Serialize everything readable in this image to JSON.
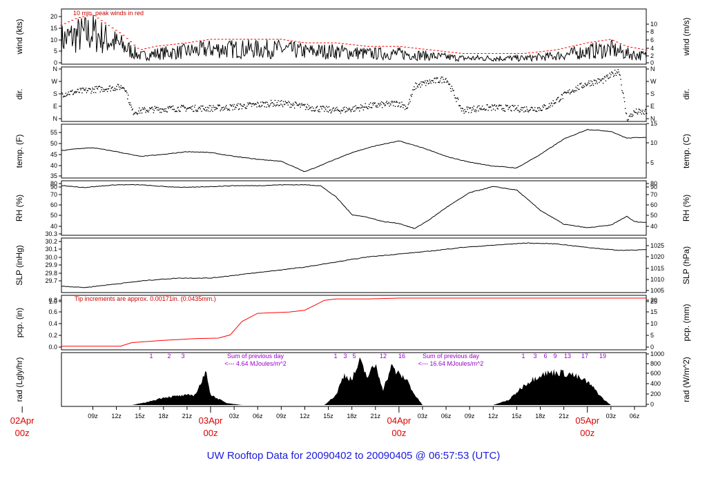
{
  "title": "UW Rooftop Data for 20090402  to  20090405 @ 06:57:53  (UTC)",
  "colors": {
    "title": "#1a1adb",
    "day_labels": "#dd0000",
    "note_red": "#cc0000",
    "note_purple": "#9900cc",
    "trace": "#000000",
    "pcp": "#ff0000",
    "peak": "#ff0000"
  },
  "chart_data": {
    "type": "line",
    "x_range_hours": [
      5,
      79.5
    ],
    "x_hour_ticks": [
      {
        "h": 9,
        "label": "09z"
      },
      {
        "h": 12,
        "label": "12z"
      },
      {
        "h": 15,
        "label": "15z"
      },
      {
        "h": 18,
        "label": "18z"
      },
      {
        "h": 21,
        "label": "21z"
      },
      {
        "h": 27,
        "label": "03z"
      },
      {
        "h": 30,
        "label": "06z"
      },
      {
        "h": 33,
        "label": "09z"
      },
      {
        "h": 36,
        "label": "12z"
      },
      {
        "h": 39,
        "label": "15z"
      },
      {
        "h": 42,
        "label": "18z"
      },
      {
        "h": 45,
        "label": "21z"
      },
      {
        "h": 51,
        "label": "03z"
      },
      {
        "h": 54,
        "label": "06z"
      },
      {
        "h": 57,
        "label": "09z"
      },
      {
        "h": 60,
        "label": "12z"
      },
      {
        "h": 63,
        "label": "15z"
      },
      {
        "h": 66,
        "label": "18z"
      },
      {
        "h": 69,
        "label": "21z"
      },
      {
        "h": 75,
        "label": "03z"
      },
      {
        "h": 78,
        "label": "06z"
      }
    ],
    "day_labels": [
      {
        "h": 0,
        "date": "02Apr",
        "hour": "00z"
      },
      {
        "h": 24,
        "date": "03Apr",
        "hour": "00z"
      },
      {
        "h": 48,
        "date": "04Apr",
        "hour": "00z"
      },
      {
        "h": 72,
        "date": "05Apr",
        "hour": "00z"
      }
    ],
    "panels": [
      {
        "id": "wind",
        "left_label": "wind (kts)",
        "right_label": "wind (m/s)",
        "ylim": [
          0,
          23
        ],
        "left_ticks": [
          "0",
          "5",
          "10",
          "15",
          "20"
        ],
        "right_ticks": [
          "0",
          "2",
          "4",
          "6",
          "8",
          "10"
        ],
        "annotation": "10 min. peak winds in red",
        "series": [
          {
            "style": "wind",
            "x": [
              5,
              7,
              9,
              11,
              13,
              15,
              17,
              21,
              24,
              27,
              30,
              33,
              36,
              40,
              44,
              48,
              52,
              56,
              60,
              64,
              68,
              70,
              72,
              75,
              77,
              79.5
            ],
            "y": [
              10,
              12,
              13,
              10,
              7,
              3,
              4,
              5,
              6,
              6,
              6,
              6,
              5,
              5,
              4,
              4,
              3,
              2,
              2,
              2,
              3,
              4,
              5,
              6,
              4,
              3
            ]
          }
        ]
      },
      {
        "id": "dir",
        "left_label": "dir.",
        "right_label": "dir.",
        "ylim": [
          0,
          360
        ],
        "left_ticks": [
          "N",
          "E",
          "S",
          "W",
          "N"
        ],
        "right_ticks": [
          "N",
          "E",
          "S",
          "W",
          "N"
        ],
        "series": [
          {
            "style": "scatter",
            "x": [
              5,
              7,
              9,
              11,
              13,
              14,
              16,
              18,
              20,
              22,
              24,
              26,
              28,
              30,
              32,
              34,
              36,
              38,
              40,
              42,
              44,
              46,
              48,
              49,
              50,
              52,
              54,
              56,
              58,
              60,
              62,
              64,
              66,
              67,
              68,
              70,
              72,
              74,
              76,
              77,
              78,
              79.5
            ],
            "y": [
              185,
              200,
              215,
              225,
              235,
              60,
              75,
              80,
              85,
              85,
              85,
              90,
              100,
              110,
              120,
              115,
              95,
              80,
              70,
              80,
              100,
              110,
              120,
              90,
              240,
              270,
              290,
              70,
              85,
              90,
              85,
              80,
              85,
              100,
              140,
              210,
              260,
              280,
              350,
              10,
              60,
              55
            ]
          }
        ]
      },
      {
        "id": "temp",
        "left_label": "temp. (F)",
        "right_label": "temp. (C)",
        "ylim": [
          32.5,
          59
        ],
        "left_ticks": [
          "35",
          "40",
          "45",
          "50",
          "55"
        ],
        "right_ticks": [
          "5",
          "10",
          "15"
        ],
        "series": [
          {
            "style": "line",
            "x": [
              5,
              7,
              9,
              12,
              15,
              18,
              21,
              24,
              27,
              30,
              33,
              36,
              39,
              42,
              45,
              48,
              51,
              54,
              57,
              60,
              63,
              66,
              69,
              72,
              75,
              77,
              79.5
            ],
            "y": [
              46,
              47,
              47.5,
              45.5,
              43,
              44,
              45.5,
              45,
              43,
              41.5,
              40.5,
              35,
              40,
              45,
              48.5,
              51,
              47.5,
              43,
              40,
              38,
              37,
              44,
              52,
              57,
              56,
              52.5,
              53
            ]
          }
        ]
      },
      {
        "id": "rh",
        "left_label": "RH (%)",
        "right_label": "RH (%)",
        "ylim": [
          38,
          97
        ],
        "left_ticks": [
          "40",
          "50",
          "60",
          "70",
          "80",
          "90"
        ],
        "right_ticks": [
          "40",
          "50",
          "60",
          "70",
          "80",
          "90"
        ],
        "series": [
          {
            "style": "line",
            "x": [
              5,
              8,
              12,
              15,
              18,
              21,
              24,
              27,
              30,
              33,
              36,
              38,
              40,
              42,
              44,
              46,
              48,
              50,
              52,
              54,
              57,
              60,
              63,
              66,
              69,
              72,
              75,
              77,
              78,
              79.5
            ],
            "y": [
              93,
              91,
              94,
              94,
              92,
              91,
              92,
              93,
              93,
              94,
              94,
              93,
              80,
              60,
              57,
              52,
              50,
              44,
              55,
              68,
              85,
              92,
              88,
              65,
              49,
              45,
              48,
              58,
              52,
              51
            ]
          }
        ]
      },
      {
        "id": "slp",
        "left_label": "SLP (inHg)",
        "right_label": "SLP (hPa)",
        "ylim": [
          29.65,
          30.36
        ],
        "left_ticks": [
          "29.7",
          "29.8",
          "29.9",
          "30.0",
          "30.1",
          "30.2",
          "30.3"
        ],
        "right_ticks": [
          "1005",
          "1010",
          "1015",
          "1020",
          "1025"
        ],
        "series": [
          {
            "style": "line",
            "x": [
              5,
              8,
              12,
              16,
              20,
              24,
              28,
              32,
              36,
              40,
              44,
              48,
              52,
              56,
              60,
              64,
              68,
              72,
              76,
              79.5
            ],
            "y": [
              29.72,
              29.7,
              29.75,
              29.8,
              29.83,
              29.83,
              29.88,
              29.93,
              29.98,
              30.05,
              30.12,
              30.16,
              30.2,
              30.25,
              30.28,
              30.31,
              30.3,
              30.25,
              30.21,
              30.22
            ]
          }
        ]
      },
      {
        "id": "pcp",
        "left_label": "pcp. (in)",
        "right_label": "pcp. (mm)",
        "ylim": [
          -0.05,
          1.1
        ],
        "left_ticks": [
          "0.0",
          "0.2",
          "0.4",
          "0.6",
          "0.8",
          "1.0"
        ],
        "right_ticks": [
          "0",
          "5",
          "10",
          "15",
          "20",
          "25"
        ],
        "annotation": "Tip increments are approx. 0.00171in. (0.0435mm.)",
        "series": [
          {
            "style": "pcp",
            "x": [
              5,
              12.5,
              14,
              18,
              22,
              25,
              26.5,
              28,
              30,
              34,
              36,
              37.5,
              38.5,
              40,
              44,
              48,
              79.5
            ],
            "y": [
              0,
              0,
              0.08,
              0.13,
              0.17,
              0.18,
              0.25,
              0.55,
              0.73,
              0.76,
              0.8,
              0.93,
              1.02,
              1.05,
              1.05,
              1.07,
              1.07
            ]
          }
        ]
      },
      {
        "id": "rad",
        "left_label": "rad (Lgly/hr)",
        "right_label": "rad (W/m^2)",
        "ylim": [
          0,
          1000
        ],
        "left_ticks": [],
        "right_ticks": [
          "0",
          "200",
          "400",
          "600",
          "800",
          "1000"
        ],
        "series": [
          {
            "style": "area",
            "x": [
              5,
              14,
              16,
              18,
              20,
              22,
              23.5,
              24,
              26,
              28,
              38.5,
              40,
              41,
              42,
              43,
              44,
              45,
              46,
              47,
              48,
              49,
              50,
              51,
              60,
              62,
              64,
              66,
              68,
              70,
              72,
              73,
              74,
              75,
              79.5
            ],
            "y": [
              0,
              0,
              60,
              150,
              180,
              200,
              650,
              200,
              40,
              0,
              0,
              200,
              600,
              500,
              850,
              550,
              800,
              300,
              750,
              600,
              500,
              200,
              0,
              0,
              100,
              400,
              600,
              650,
              600,
              450,
              300,
              120,
              0,
              0
            ]
          }
        ],
        "events_day1": [
          "1",
          "2",
          "3"
        ],
        "events_day2": [
          "1",
          "3",
          "5",
          "12",
          "16"
        ],
        "events_day3": [
          "1",
          "3",
          "6",
          "9",
          "13",
          "17",
          "19"
        ],
        "note1": [
          "Sum of previous day",
          "<--- 4.64 MJoules/m^2"
        ],
        "note2": [
          "Sum of previous day",
          "<--- 16.64 MJoules/m^2"
        ]
      }
    ]
  }
}
